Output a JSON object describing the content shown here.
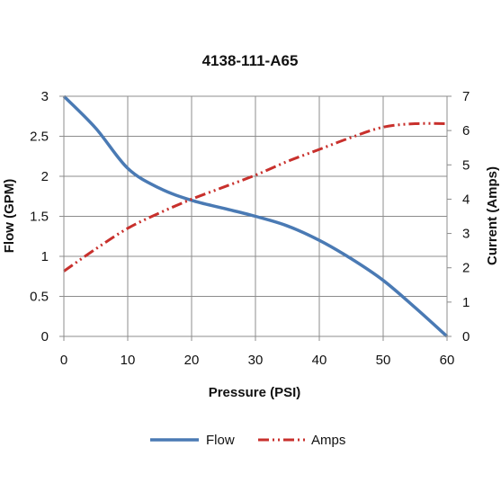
{
  "chart_data": {
    "type": "line",
    "title": "4138-111-A65",
    "xlabel": "Pressure (PSI)",
    "ylabel": "Flow (GPM)",
    "y2label": "Current (Amps)",
    "xlim": [
      0,
      60
    ],
    "ylim": [
      0,
      3
    ],
    "y2lim": [
      0,
      7
    ],
    "x_ticks": [
      "0",
      "10",
      "20",
      "30",
      "40",
      "50",
      "60"
    ],
    "y_ticks": [
      "0",
      "0.5",
      "1",
      "1.5",
      "2",
      "2.5",
      "3"
    ],
    "y2_ticks": [
      "0",
      "1",
      "2",
      "3",
      "4",
      "5",
      "6",
      "7"
    ],
    "grid": true,
    "legend_position": "bottom",
    "series": [
      {
        "name": "Flow",
        "axis": "left",
        "color": "#4a7ab4",
        "style": "solid",
        "x": [
          0,
          5,
          10,
          15,
          20,
          25,
          30,
          35,
          40,
          45,
          50,
          55,
          60
        ],
        "y": [
          3.0,
          2.6,
          2.1,
          1.85,
          1.7,
          1.6,
          1.5,
          1.38,
          1.2,
          0.97,
          0.7,
          0.36,
          0.0
        ]
      },
      {
        "name": "Amps",
        "axis": "right",
        "color": "#c8302c",
        "style": "dash-dot-dot",
        "x": [
          0,
          5,
          10,
          15,
          20,
          25,
          30,
          35,
          40,
          45,
          50,
          55,
          60
        ],
        "y": [
          1.9,
          2.55,
          3.15,
          3.6,
          4.0,
          4.35,
          4.7,
          5.1,
          5.45,
          5.8,
          6.1,
          6.2,
          6.2
        ]
      }
    ]
  }
}
